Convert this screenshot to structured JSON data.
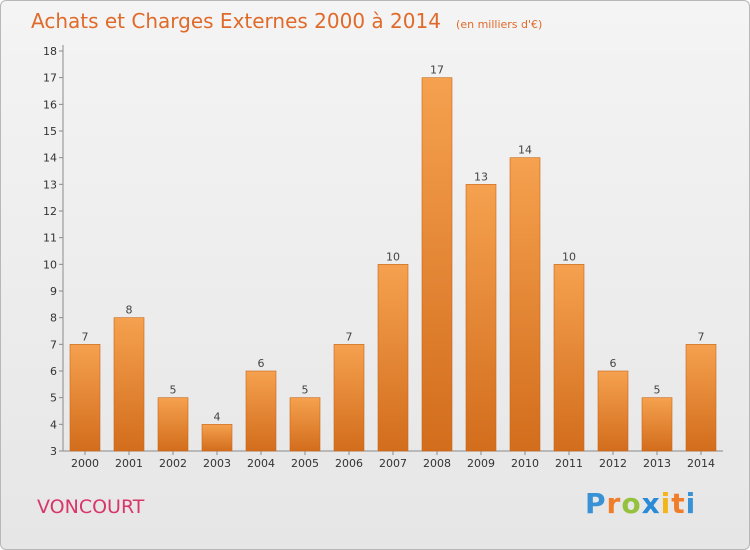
{
  "title": "Achats et Charges Externes 2000 à 2014",
  "unit": "(en milliers d'€)",
  "commune": "VONCOURT",
  "brand": {
    "letters": [
      "P",
      "r",
      "o",
      "x",
      "i",
      "t",
      "i"
    ]
  },
  "colors": {
    "bar": "#f0923a",
    "bar_dark": "#d26d1c",
    "title": "#e06a2a",
    "commune": "#d8366a"
  },
  "chart_data": {
    "type": "bar",
    "categories": [
      "2000",
      "2001",
      "2002",
      "2003",
      "2004",
      "2005",
      "2006",
      "2007",
      "2008",
      "2009",
      "2010",
      "2011",
      "2012",
      "2013",
      "2014"
    ],
    "values": [
      7,
      8,
      5,
      4,
      6,
      5,
      7,
      10,
      17,
      13,
      14,
      10,
      6,
      5,
      7
    ],
    "ylim": [
      3,
      18
    ],
    "yticks": [
      3,
      4,
      5,
      6,
      7,
      8,
      9,
      10,
      11,
      12,
      13,
      14,
      15,
      16,
      17,
      18
    ],
    "grid": false,
    "legend": "none"
  }
}
